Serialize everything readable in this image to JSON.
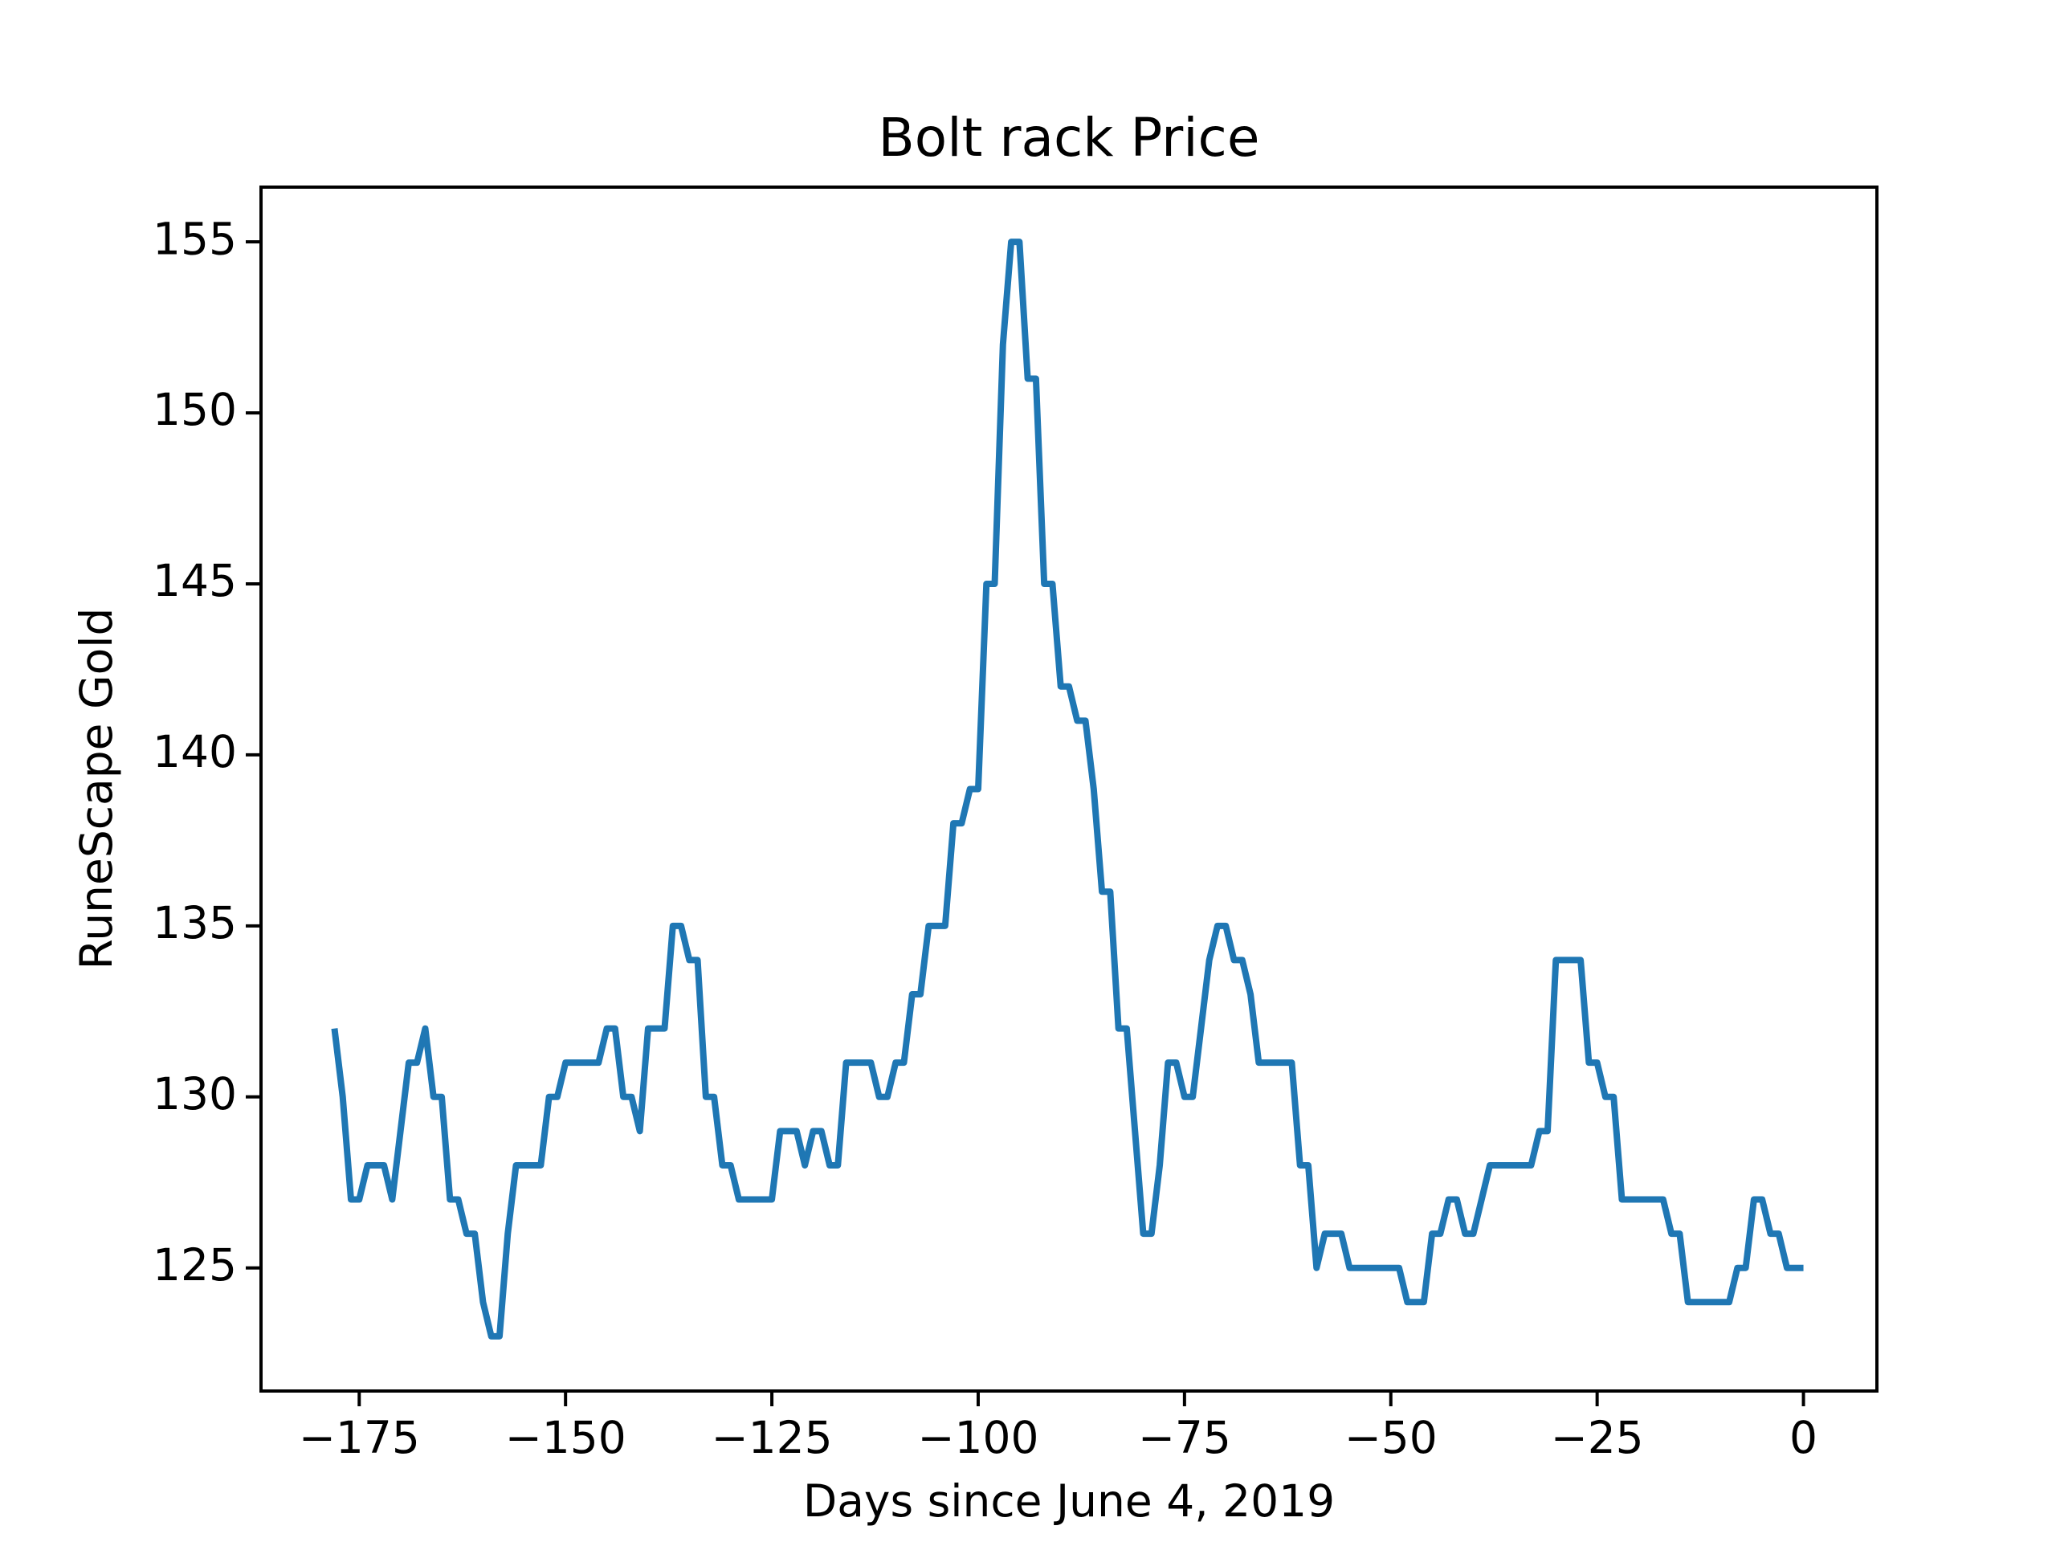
{
  "chart_data": {
    "type": "line",
    "title": "Bolt rack Price",
    "x_label": "Days since June 4, 2019",
    "y_label": "RuneScape Gold",
    "x": [
      -178,
      -177,
      -176,
      -175,
      -174,
      -173,
      -172,
      -171,
      -170,
      -169,
      -168,
      -167,
      -166,
      -165,
      -164,
      -163,
      -162,
      -161,
      -160,
      -159,
      -158,
      -157,
      -156,
      -155,
      -154,
      -153,
      -152,
      -151,
      -150,
      -149,
      -148,
      -147,
      -146,
      -145,
      -144,
      -143,
      -142,
      -141,
      -140,
      -139,
      -138,
      -137,
      -136,
      -135,
      -134,
      -133,
      -132,
      -131,
      -130,
      -129,
      -128,
      -127,
      -126,
      -125,
      -124,
      -123,
      -122,
      -121,
      -120,
      -119,
      -118,
      -117,
      -116,
      -115,
      -114,
      -113,
      -112,
      -111,
      -110,
      -109,
      -108,
      -107,
      -106,
      -105,
      -104,
      -103,
      -102,
      -101,
      -100,
      -99,
      -98,
      -97,
      -96,
      -95,
      -94,
      -93,
      -92,
      -91,
      -90,
      -89,
      -88,
      -87,
      -86,
      -85,
      -84,
      -83,
      -82,
      -81,
      -80,
      -79,
      -78,
      -77,
      -76,
      -75,
      -74,
      -73,
      -72,
      -71,
      -70,
      -69,
      -68,
      -67,
      -66,
      -65,
      -64,
      -63,
      -62,
      -61,
      -60,
      -59,
      -58,
      -57,
      -56,
      -55,
      -54,
      -53,
      -52,
      -51,
      -50,
      -49,
      -48,
      -47,
      -46,
      -45,
      -44,
      -43,
      -42,
      -41,
      -40,
      -39,
      -38,
      -37,
      -36,
      -35,
      -34,
      -33,
      -32,
      -31,
      -30,
      -29,
      -28,
      -27,
      -26,
      -25,
      -24,
      -23,
      -22,
      -21,
      -20,
      -19,
      -18,
      -17,
      -16,
      -15,
      -14,
      -13,
      -12,
      -11,
      -10,
      -9,
      -8,
      -7,
      -6,
      -5,
      -4,
      -3,
      -2,
      -1,
      0
    ],
    "series": [
      {
        "name": "Bolt rack",
        "color": "#1f77b4",
        "values": [
          132,
          130,
          127,
          127,
          128,
          128,
          128,
          127,
          129,
          131,
          131,
          132,
          130,
          130,
          127,
          127,
          126,
          126,
          124,
          123,
          123,
          126,
          128,
          128,
          128,
          128,
          130,
          130,
          131,
          131,
          131,
          131,
          131,
          132,
          132,
          130,
          130,
          129,
          132,
          132,
          132,
          135,
          135,
          134,
          134,
          130,
          130,
          128,
          128,
          127,
          127,
          127,
          127,
          127,
          129,
          129,
          129,
          128,
          129,
          129,
          128,
          128,
          131,
          131,
          131,
          131,
          130,
          130,
          131,
          131,
          133,
          133,
          135,
          135,
          135,
          138,
          138,
          139,
          139,
          145,
          145,
          152,
          155,
          155,
          151,
          151,
          145,
          145,
          142,
          142,
          141,
          141,
          139,
          136,
          136,
          132,
          132,
          129,
          126,
          126,
          128,
          131,
          131,
          130,
          130,
          132,
          134,
          135,
          135,
          134,
          134,
          133,
          131,
          131,
          131,
          131,
          131,
          128,
          128,
          125,
          126,
          126,
          126,
          125,
          125,
          125,
          125,
          125,
          125,
          125,
          124,
          124,
          124,
          126,
          126,
          127,
          127,
          126,
          126,
          127,
          128,
          128,
          128,
          128,
          128,
          128,
          129,
          129,
          134,
          134,
          134,
          134,
          131,
          131,
          130,
          130,
          127,
          127,
          127,
          127,
          127,
          127,
          126,
          126,
          124,
          124,
          124,
          124,
          124,
          124,
          125,
          125,
          127,
          127,
          126,
          126,
          125,
          125,
          125
        ]
      }
    ],
    "xlim": [
      -186.9,
      8.9
    ],
    "ylim": [
      121.4,
      156.6
    ],
    "xticks": [
      {
        "value": -175,
        "label": "−175"
      },
      {
        "value": -150,
        "label": "−150"
      },
      {
        "value": -125,
        "label": "−125"
      },
      {
        "value": -100,
        "label": "−100"
      },
      {
        "value": -75,
        "label": "−75"
      },
      {
        "value": -50,
        "label": "−50"
      },
      {
        "value": -25,
        "label": "−25"
      },
      0
    ],
    "yticks": [
      125,
      130,
      135,
      140,
      145,
      150,
      155
    ],
    "grid": false
  }
}
